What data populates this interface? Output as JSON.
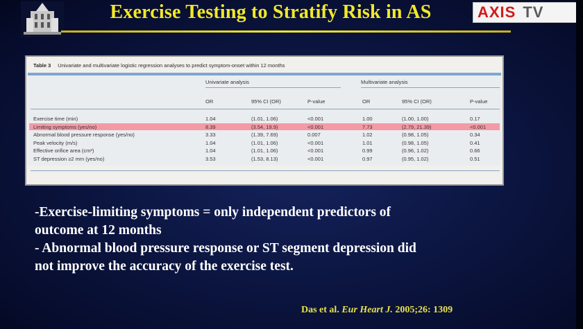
{
  "slide": {
    "title": "Exercise Testing to Stratify Risk in AS",
    "logo": {
      "icon": "building-emblem-icon",
      "brand_left": "AXIS",
      "brand_right": "TV",
      "brand_color": "#d21a1a"
    }
  },
  "table": {
    "label": "Table 3",
    "caption": "Univariate and multivariate logistic regression analyses to predict symptom-onset within 12 months",
    "group_univariate": "Univariate analysis",
    "group_multivariate": "Multivariate analysis",
    "columns": [
      "OR",
      "95% CI (OR)",
      "P-value",
      "OR",
      "95% CI (OR)",
      "P-value"
    ],
    "rows": [
      {
        "label": "Exercise time (min)",
        "cells": [
          "1.04",
          "(1.01, 1.06)",
          "<0.001",
          "1.00",
          "(1.00, 1.00)",
          "0.17"
        ],
        "highlight": false
      },
      {
        "label": "Limiting symptoms (yes/no)",
        "cells": [
          "8.39",
          "(3.54, 19.9)",
          "<0.001",
          "7.73",
          "(2.79, 21.39)",
          "<0.001"
        ],
        "highlight": true
      },
      {
        "label": "Abnormal blood pressure response (yes/no)",
        "cells": [
          "3.33",
          "(1.39, 7.69)",
          "0.007",
          "1.02",
          "(0.98, 1.05)",
          "0.34"
        ],
        "highlight": false
      },
      {
        "label": "Peak velocity (m/s)",
        "cells": [
          "1.04",
          "(1.01, 1.06)",
          "<0.001",
          "1.01",
          "(0.98, 1.05)",
          "0.41"
        ],
        "highlight": false
      },
      {
        "label": "Effective orifice area (cm²)",
        "cells": [
          "1.04",
          "(1.01, 1.06)",
          "<0.001",
          "0.99",
          "(0.96, 1.02)",
          "0.66"
        ],
        "highlight": false
      },
      {
        "label": "ST depression ≥2 mm (yes/no)",
        "cells": [
          "3.53",
          "(1.53, 8.13)",
          "<0.001",
          "0.97",
          "(0.95, 1.02)",
          "0.51"
        ],
        "highlight": false
      }
    ],
    "highlight_color": "#f39aa6"
  },
  "bullets": {
    "b1_line1": "-Exercise-limiting symptoms = only independent predictors of",
    "b1_line2": "outcome at 12 months",
    "b2_line1": "- Abnormal blood pressure response or ST segment depression did",
    "b2_line2": "not improve the accuracy of the exercise test."
  },
  "citation": {
    "authors": "Das et al.",
    "journal": "Eur Heart J.",
    "ref": "2005;26: 1309"
  },
  "colors": {
    "title": "#f2e82a",
    "background": "#0c1642",
    "body_text": "#ffffff"
  }
}
